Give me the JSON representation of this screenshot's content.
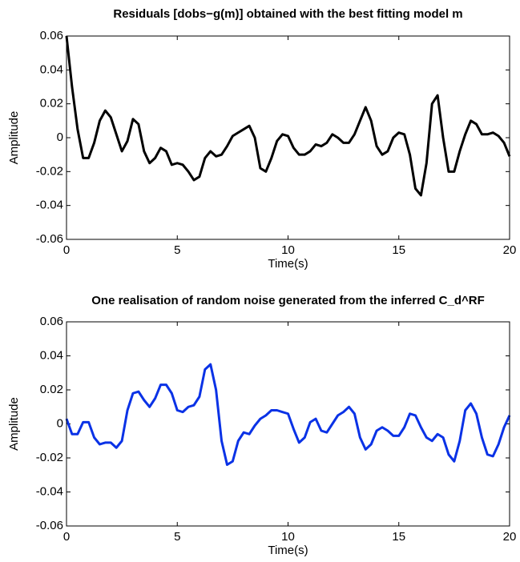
{
  "chart_data": [
    {
      "type": "line",
      "title": "Residuals [dobs−g(m)] obtained with the best fitting model m",
      "x_label": "Time(s)",
      "y_label": "Amplitude",
      "x": [
        0,
        0.25,
        0.5,
        0.75,
        1,
        1.25,
        1.5,
        1.75,
        2,
        2.25,
        2.5,
        2.75,
        3,
        3.25,
        3.5,
        3.75,
        4,
        4.25,
        4.5,
        4.75,
        5,
        5.25,
        5.5,
        5.75,
        6,
        6.25,
        6.5,
        6.75,
        7,
        7.25,
        7.5,
        7.75,
        8,
        8.25,
        8.5,
        8.75,
        9,
        9.25,
        9.5,
        9.75,
        10,
        10.25,
        10.5,
        10.75,
        11,
        11.25,
        11.5,
        11.75,
        12,
        12.25,
        12.5,
        12.75,
        13,
        13.25,
        13.5,
        13.75,
        14,
        14.25,
        14.5,
        14.75,
        15,
        15.25,
        15.5,
        15.75,
        16,
        16.25,
        16.5,
        16.75,
        17,
        17.25,
        17.5,
        17.75,
        18,
        18.25,
        18.5,
        18.75,
        19,
        19.25,
        19.5,
        19.75,
        20
      ],
      "series": [
        {
          "color": "#000000",
          "values": [
            0.06,
            0.03,
            0.005,
            -0.012,
            -0.012,
            -0.003,
            0.01,
            0.016,
            0.012,
            0.002,
            -0.008,
            -0.002,
            0.011,
            0.008,
            -0.008,
            -0.015,
            -0.012,
            -0.006,
            -0.008,
            -0.016,
            -0.015,
            -0.016,
            -0.02,
            -0.025,
            -0.023,
            -0.012,
            -0.008,
            -0.011,
            -0.01,
            -0.005,
            0.001,
            0.003,
            0.005,
            0.007,
            0,
            -0.018,
            -0.02,
            -0.012,
            -0.002,
            0.002,
            0.001,
            -0.006,
            -0.01,
            -0.01,
            -0.008,
            -0.004,
            -0.005,
            -0.003,
            0.002,
            0,
            -0.003,
            -0.003,
            0.002,
            0.01,
            0.018,
            0.01,
            -0.005,
            -0.01,
            -0.008,
            0,
            0.003,
            0.002,
            -0.01,
            -0.03,
            -0.034,
            -0.015,
            0.02,
            0.025,
            0,
            -0.02,
            -0.02,
            -0.008,
            0.002,
            0.01,
            0.008,
            0.002,
            0.002,
            0.003,
            0.001,
            -0.003,
            -0.011
          ]
        }
      ],
      "xlim": [
        0,
        20
      ],
      "xticks": [
        0,
        5,
        10,
        15,
        20
      ],
      "ylim": [
        -0.06,
        0.06
      ],
      "yticks": [
        -0.06,
        -0.04,
        -0.02,
        0,
        0.02,
        0.04,
        0.06
      ]
    },
    {
      "type": "line",
      "title": "One realisation of random noise generated from the inferred C_d^RF",
      "x_label": "Time(s)",
      "y_label": "Amplitude",
      "x": [
        0,
        0.25,
        0.5,
        0.75,
        1,
        1.25,
        1.5,
        1.75,
        2,
        2.25,
        2.5,
        2.75,
        3,
        3.25,
        3.5,
        3.75,
        4,
        4.25,
        4.5,
        4.75,
        5,
        5.25,
        5.5,
        5.75,
        6,
        6.25,
        6.5,
        6.75,
        7,
        7.25,
        7.5,
        7.75,
        8,
        8.25,
        8.5,
        8.75,
        9,
        9.25,
        9.5,
        9.75,
        10,
        10.25,
        10.5,
        10.75,
        11,
        11.25,
        11.5,
        11.75,
        12,
        12.25,
        12.5,
        12.75,
        13,
        13.25,
        13.5,
        13.75,
        14,
        14.25,
        14.5,
        14.75,
        15,
        15.25,
        15.5,
        15.75,
        16,
        16.25,
        16.5,
        16.75,
        17,
        17.25,
        17.5,
        17.75,
        18,
        18.25,
        18.5,
        18.75,
        19,
        19.25,
        19.5,
        19.75,
        20
      ],
      "series": [
        {
          "color": "#0a32e6",
          "values": [
            0.003,
            -0.006,
            -0.006,
            0.001,
            0.001,
            -0.008,
            -0.012,
            -0.011,
            -0.011,
            -0.014,
            -0.01,
            0.008,
            0.018,
            0.019,
            0.014,
            0.01,
            0.015,
            0.023,
            0.023,
            0.018,
            0.008,
            0.007,
            0.01,
            0.011,
            0.016,
            0.032,
            0.035,
            0.02,
            -0.01,
            -0.024,
            -0.022,
            -0.01,
            -0.005,
            -0.006,
            -0.001,
            0.003,
            0.005,
            0.008,
            0.008,
            0.007,
            0.006,
            -0.003,
            -0.011,
            -0.008,
            0.001,
            0.003,
            -0.004,
            -0.005,
            0,
            0.005,
            0.007,
            0.01,
            0.006,
            -0.008,
            -0.015,
            -0.012,
            -0.004,
            -0.002,
            -0.004,
            -0.007,
            -0.007,
            -0.002,
            0.006,
            0.005,
            -0.002,
            -0.008,
            -0.01,
            -0.006,
            -0.008,
            -0.018,
            -0.022,
            -0.01,
            0.008,
            0.012,
            0.006,
            -0.008,
            -0.018,
            -0.019,
            -0.012,
            -0.002,
            0.005
          ]
        }
      ],
      "xlim": [
        0,
        20
      ],
      "xticks": [
        0,
        5,
        10,
        15,
        20
      ],
      "ylim": [
        -0.06,
        0.06
      ],
      "yticks": [
        -0.06,
        -0.04,
        -0.02,
        0,
        0.02,
        0.04,
        0.06
      ]
    }
  ]
}
